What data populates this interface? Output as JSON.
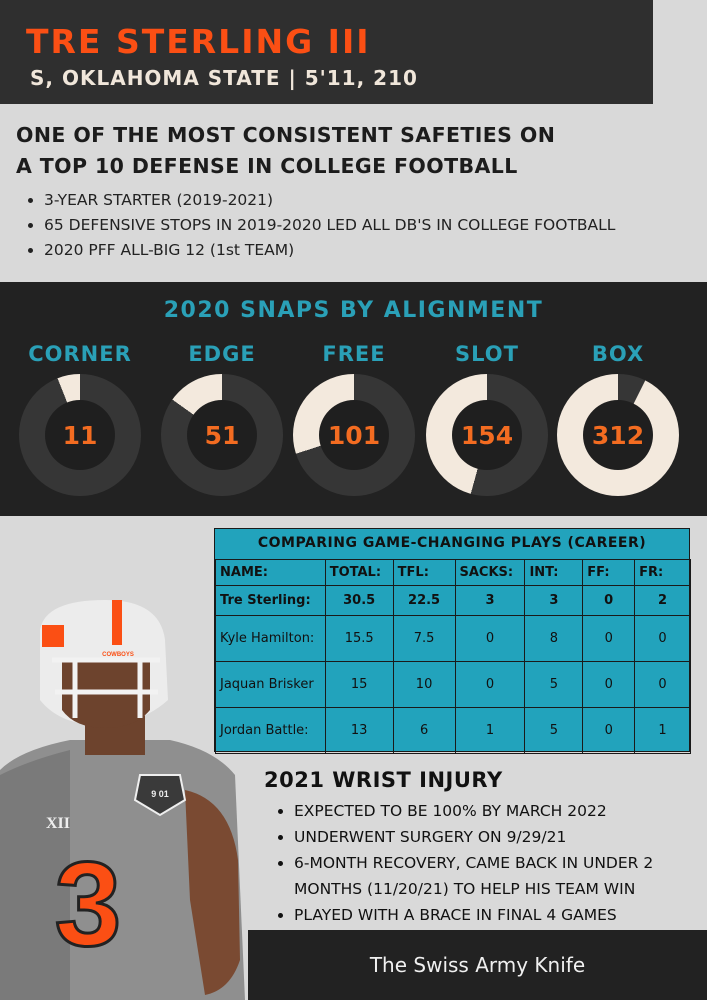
{
  "header": {
    "name": "TRE STERLING III",
    "subtitle": "S, OKLAHOMA STATE | 5'11, 210"
  },
  "intro": {
    "headline_line1": "ONE OF THE MOST CONSISTENT SAFETIES ON",
    "headline_line2": "A TOP 10 DEFENSE IN COLLEGE FOOTBALL",
    "bullets": [
      "3-YEAR STARTER (2019-2021)",
      "65 DEFENSIVE STOPS IN 2019-2020 LED ALL DB'S IN COLLEGE FOOTBALL",
      "2020 PFF ALL-BIG 12 (1st TEAM)"
    ]
  },
  "chart_data": {
    "type": "pie",
    "title": "2020 SNAPS BY ALIGNMENT",
    "categories": [
      "CORNER",
      "EDGE",
      "FREE",
      "SLOT",
      "BOX"
    ],
    "values": [
      11,
      51,
      101,
      154,
      312
    ],
    "colors": {
      "share": "#f3e9dd",
      "remainder": "#363636"
    }
  },
  "comparison": {
    "title": "COMPARING GAME-CHANGING PLAYS (CAREER)",
    "headers": [
      "NAME:",
      "TOTAL:",
      "TFL:",
      "SACKS:",
      "INT:",
      "FF:",
      "FR:"
    ],
    "rows": [
      [
        "Tre Sterling:",
        "30.5",
        "22.5",
        "3",
        "3",
        "0",
        "2"
      ],
      [
        "Kyle Hamilton:",
        "15.5",
        "7.5",
        "0",
        "8",
        "0",
        "0"
      ],
      [
        "Jaquan Brisker",
        "15",
        "10",
        "0",
        "5",
        "0",
        "0"
      ],
      [
        "Jordan Battle:",
        "13",
        "6",
        "1",
        "5",
        "0",
        "1"
      ]
    ]
  },
  "player_image": {
    "jersey_number": "3",
    "helmet_text": "COWBOYS",
    "patch_text": "9 01",
    "conference_mark": "XII",
    "colors": {
      "jersey": "#8c8c8c",
      "number": "#fb4f14",
      "helmet": "#ececec"
    }
  },
  "injury": {
    "heading": "2021 WRIST INJURY",
    "bullets": [
      "EXPECTED TO BE 100% BY MARCH 2022",
      "UNDERWENT SURGERY ON 9/29/21",
      "6-MONTH RECOVERY, CAME BACK IN UNDER 2 MONTHS (11/20/21) TO HELP HIS TEAM WIN",
      "PLAYED WITH A BRACE IN FINAL 4 GAMES"
    ]
  },
  "footer": {
    "text": "The Swiss Army Knife"
  }
}
